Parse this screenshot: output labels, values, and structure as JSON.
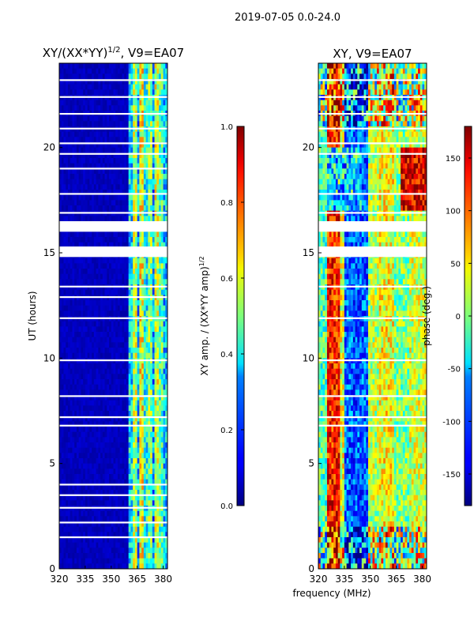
{
  "suptitle": "2019-07-05 0.0-24.0",
  "xlabel": "frequency (MHz)",
  "colors": {
    "background": "#ffffff",
    "gap_line": "#ffffff",
    "jet_low": "#00007f",
    "jet_high": "#7f0000"
  },
  "chart_data": [
    {
      "type": "heatmap",
      "title_main": "XY/(XX*YY)",
      "title_sup": "1/2",
      "title_tail": ", V9=EA07",
      "xlabel": "",
      "ylabel": "UT (hours)",
      "xlim": [
        320,
        382.5
      ],
      "ylim": [
        0,
        24
      ],
      "xticks": [
        "320",
        "335",
        "350",
        "365",
        "380"
      ],
      "yticks": [
        "0",
        "5",
        "10",
        "15",
        "20"
      ],
      "cmap": "jet",
      "colorbar": {
        "label_main": "XY amp. / (XX*YY amp)",
        "label_sup": "1/2",
        "range": [
          0.0,
          1.0
        ],
        "ticks": [
          "0.0",
          "0.2",
          "0.4",
          "0.6",
          "0.8",
          "1.0"
        ]
      },
      "description": "Normalized cross-hand amplitude vs frequency and time: low (~0.05) below 360 MHz, elevated (0.3-0.7) in bands from 360 to 382 MHz",
      "high_amp_band_mhz": [
        360,
        382
      ],
      "gap_hours_approx": [
        1.5,
        2.2,
        2.9,
        3.5,
        4.0,
        6.8,
        7.2,
        8.2,
        9.9,
        11.9,
        12.9,
        13.4,
        14.9,
        15.1,
        16.2,
        16.9,
        17.8,
        19.0,
        19.7,
        20.2,
        20.9,
        21.6,
        22.4,
        23.2
      ]
    },
    {
      "type": "heatmap",
      "title": "XY, V9=EA07",
      "xlabel": "",
      "ylabel": "",
      "xlim": [
        320,
        382.5
      ],
      "ylim": [
        0,
        24
      ],
      "xticks": [
        "320",
        "335",
        "350",
        "365",
        "380"
      ],
      "yticks": [
        "0",
        "5",
        "10",
        "15",
        "20"
      ],
      "cmap": "jet",
      "colorbar": {
        "label": "phase (deg.)",
        "range": [
          -180,
          180
        ],
        "ticks": [
          "-150",
          "-100",
          "-50",
          "0",
          "50",
          "100",
          "150"
        ]
      },
      "description": "Cross-hand phase vs frequency and time with vertical banding: red/orange near 325-332 MHz, blue near 333-348 MHz, green/yellow above 350 MHz; noisier at start and end of day",
      "gap_hours_approx": [
        6.8,
        7.2,
        8.2,
        9.9,
        11.9,
        13.4,
        14.9,
        15.1,
        16.2,
        16.9,
        17.8,
        19.7,
        20.2,
        20.9,
        21.6,
        22.4,
        23.2
      ]
    }
  ]
}
